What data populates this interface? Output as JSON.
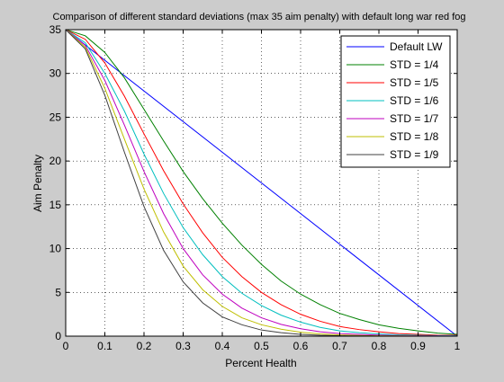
{
  "chart_data": {
    "type": "line",
    "title": "Comparison of different standard deviations (max 35 aim penalty) with default long war red fog",
    "xlabel": "Percent Health",
    "ylabel": "Aim Penalty",
    "xlim": [
      0,
      1
    ],
    "ylim": [
      0,
      35
    ],
    "xticks": [
      0,
      0.1,
      0.2,
      0.3,
      0.4,
      0.5,
      0.6,
      0.7,
      0.8,
      0.9,
      1
    ],
    "xtick_labels": [
      "0",
      "0.1",
      "0.2",
      "0.3",
      "0.4",
      "0.5",
      "0.6",
      "0.7",
      "0.8",
      "0.9",
      "1"
    ],
    "yticks": [
      0,
      5,
      10,
      15,
      20,
      25,
      30,
      35
    ],
    "ytick_labels": [
      "0",
      "5",
      "10",
      "15",
      "20",
      "25",
      "30",
      "35"
    ],
    "grid": true,
    "legend_position": "top-right",
    "series": [
      {
        "name": "Default LW",
        "color": "#0000ff",
        "x": [
          0,
          1
        ],
        "y": [
          35,
          0
        ]
      },
      {
        "name": "STD = 1/4",
        "color": "#008000",
        "x": [
          0,
          0.05,
          0.1,
          0.15,
          0.2,
          0.25,
          0.3,
          0.35,
          0.4,
          0.45,
          0.5,
          0.55,
          0.6,
          0.65,
          0.7,
          0.75,
          0.8,
          0.85,
          0.9,
          0.95,
          1
        ],
        "y": [
          35,
          34.3,
          32.4,
          29.5,
          25.9,
          22.3,
          18.8,
          15.7,
          12.9,
          10.4,
          8.2,
          6.3,
          4.8,
          3.6,
          2.6,
          1.9,
          1.3,
          0.9,
          0.6,
          0.35,
          0.2
        ]
      },
      {
        "name": "STD = 1/5",
        "color": "#ff0000",
        "x": [
          0,
          0.05,
          0.1,
          0.15,
          0.2,
          0.25,
          0.3,
          0.35,
          0.4,
          0.45,
          0.5,
          0.55,
          0.6,
          0.65,
          0.7,
          0.75,
          0.8,
          0.85,
          0.9,
          0.95,
          1
        ],
        "y": [
          35,
          33.9,
          31.2,
          27.4,
          23.1,
          18.9,
          15.1,
          11.8,
          9.0,
          6.8,
          5.0,
          3.6,
          2.5,
          1.7,
          1.1,
          0.75,
          0.5,
          0.3,
          0.2,
          0.12,
          0.1
        ]
      },
      {
        "name": "STD = 1/6",
        "color": "#00bfbf",
        "x": [
          0,
          0.05,
          0.1,
          0.15,
          0.2,
          0.25,
          0.3,
          0.35,
          0.4,
          0.45,
          0.5,
          0.55,
          0.6,
          0.65,
          0.7,
          0.75,
          0.8,
          0.85,
          0.9,
          0.95,
          1
        ],
        "y": [
          35,
          33.5,
          30.0,
          25.7,
          20.8,
          16.3,
          12.4,
          9.3,
          6.8,
          4.9,
          3.5,
          2.4,
          1.6,
          1.0,
          0.6,
          0.4,
          0.25,
          0.15,
          0.1,
          0.06,
          0.05
        ]
      },
      {
        "name": "STD = 1/7",
        "color": "#bf00bf",
        "x": [
          0,
          0.05,
          0.1,
          0.15,
          0.2,
          0.25,
          0.3,
          0.35,
          0.4,
          0.45,
          0.5,
          0.55,
          0.6,
          0.65,
          0.7,
          0.75,
          0.8,
          0.85,
          0.9,
          0.95,
          1
        ],
        "y": [
          35,
          33.2,
          29.2,
          24.1,
          18.8,
          14.0,
          10.0,
          7.0,
          4.8,
          3.2,
          2.1,
          1.35,
          0.85,
          0.5,
          0.3,
          0.2,
          0.12,
          0.07,
          0.04,
          0.02,
          0.01
        ]
      },
      {
        "name": "STD = 1/8",
        "color": "#bfbf00",
        "x": [
          0,
          0.05,
          0.1,
          0.15,
          0.2,
          0.25,
          0.3,
          0.35,
          0.4,
          0.45,
          0.5,
          0.55,
          0.6,
          0.65,
          0.7,
          0.75,
          0.8,
          0.85,
          0.9,
          0.95,
          1
        ],
        "y": [
          35,
          33.0,
          28.3,
          22.5,
          16.8,
          11.9,
          8.0,
          5.3,
          3.4,
          2.1,
          1.3,
          0.8,
          0.45,
          0.25,
          0.14,
          0.08,
          0.04,
          0.02,
          0.01,
          0.0,
          0.0
        ]
      },
      {
        "name": "STD = 1/9",
        "color": "#404040",
        "x": [
          0,
          0.05,
          0.1,
          0.15,
          0.2,
          0.25,
          0.3,
          0.35,
          0.4,
          0.45,
          0.5,
          0.55,
          0.6,
          0.65,
          0.7,
          0.75,
          0.8,
          0.85,
          0.9,
          0.95,
          1
        ],
        "y": [
          35,
          32.8,
          27.5,
          21.0,
          14.8,
          9.8,
          6.2,
          3.8,
          2.2,
          1.3,
          0.7,
          0.4,
          0.2,
          0.1,
          0.05,
          0.02,
          0.01,
          0.0,
          0.0,
          0.0,
          0.0
        ]
      }
    ]
  }
}
